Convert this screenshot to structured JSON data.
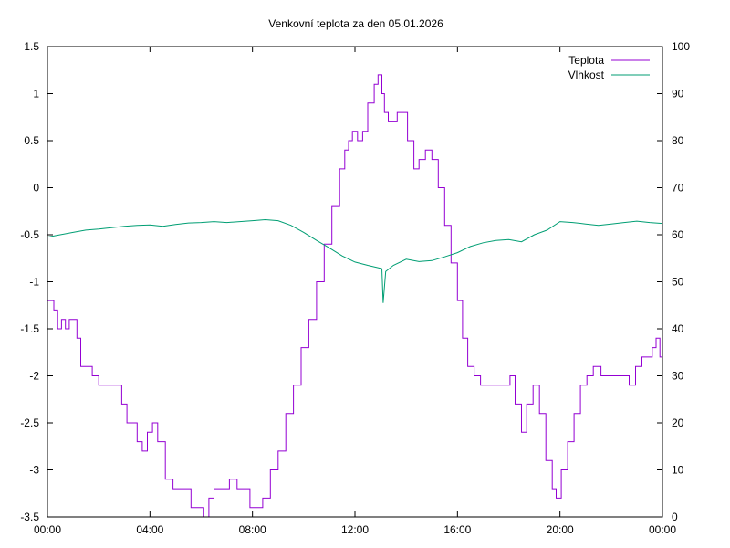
{
  "chart_data": {
    "type": "line",
    "title": "Venkovní teplota za den 05.01.2026",
    "xlabel": "",
    "ylabel": "",
    "y2label": "",
    "x_ticks": [
      "00:00",
      "04:00",
      "08:00",
      "12:00",
      "16:00",
      "20:00",
      "00:00"
    ],
    "x_range_hours": [
      0,
      24
    ],
    "ylim": [
      -3.5,
      1.5
    ],
    "y_ticks": [
      -3.5,
      -3,
      -2.5,
      -2,
      -1.5,
      -1,
      -0.5,
      0,
      0.5,
      1,
      1.5
    ],
    "y2lim": [
      0,
      100
    ],
    "y2_ticks": [
      0,
      10,
      20,
      30,
      40,
      50,
      60,
      70,
      80,
      90,
      100
    ],
    "grid": false,
    "legend_position": "top-right",
    "series": [
      {
        "name": "Teplota",
        "axis": "left",
        "color": "#9400d3",
        "x_hours": [
          0,
          0.25,
          0.4,
          0.55,
          0.7,
          0.85,
          1.0,
          1.15,
          1.3,
          1.5,
          1.75,
          2.0,
          2.1,
          2.3,
          2.6,
          2.9,
          3.1,
          3.3,
          3.5,
          3.7,
          3.9,
          4.1,
          4.3,
          4.6,
          4.9,
          5.1,
          5.4,
          5.6,
          5.8,
          6.1,
          6.3,
          6.5,
          6.8,
          7.1,
          7.4,
          7.7,
          7.9,
          8.1,
          8.4,
          8.7,
          9.0,
          9.3,
          9.6,
          9.9,
          10.2,
          10.5,
          10.8,
          11.1,
          11.4,
          11.6,
          11.75,
          11.9,
          12.1,
          12.3,
          12.5,
          12.75,
          12.9,
          13.05,
          13.15,
          13.3,
          13.45,
          13.65,
          13.85,
          14.05,
          14.3,
          14.5,
          14.75,
          15.0,
          15.25,
          15.5,
          15.75,
          16.0,
          16.2,
          16.4,
          16.65,
          16.9,
          17.2,
          17.5,
          17.8,
          18.05,
          18.25,
          18.5,
          18.7,
          18.95,
          19.2,
          19.45,
          19.7,
          19.85,
          20.05,
          20.3,
          20.55,
          20.8,
          21.05,
          21.3,
          21.6,
          21.9,
          22.2,
          22.45,
          22.7,
          22.95,
          23.2,
          23.4,
          23.6,
          23.75,
          23.9,
          24.0
        ],
        "values": [
          -1.2,
          -1.3,
          -1.5,
          -1.4,
          -1.5,
          -1.4,
          -1.4,
          -1.6,
          -1.9,
          -1.9,
          -2.0,
          -2.1,
          -2.1,
          -2.1,
          -2.1,
          -2.3,
          -2.5,
          -2.5,
          -2.7,
          -2.8,
          -2.6,
          -2.5,
          -2.7,
          -3.1,
          -3.2,
          -3.2,
          -3.2,
          -3.4,
          -3.4,
          -3.5,
          -3.3,
          -3.2,
          -3.2,
          -3.1,
          -3.2,
          -3.2,
          -3.4,
          -3.4,
          -3.3,
          -3.0,
          -2.8,
          -2.4,
          -2.1,
          -1.7,
          -1.4,
          -1.0,
          -0.6,
          -0.2,
          0.2,
          0.4,
          0.5,
          0.6,
          0.5,
          0.6,
          0.9,
          1.1,
          1.2,
          1.0,
          0.8,
          0.7,
          0.7,
          0.8,
          0.8,
          0.5,
          0.2,
          0.3,
          0.4,
          0.3,
          0.0,
          -0.4,
          -0.8,
          -1.2,
          -1.6,
          -1.9,
          -2.0,
          -2.1,
          -2.1,
          -2.1,
          -2.1,
          -2.0,
          -2.3,
          -2.6,
          -2.3,
          -2.1,
          -2.4,
          -2.9,
          -3.2,
          -3.3,
          -3.0,
          -2.7,
          -2.4,
          -2.1,
          -2.0,
          -1.9,
          -2.0,
          -2.0,
          -2.0,
          -2.0,
          -2.1,
          -1.9,
          -1.8,
          -1.8,
          -1.7,
          -1.6,
          -1.8,
          -1.8
        ]
      },
      {
        "name": "Vlhkost",
        "axis": "right",
        "color": "#009e73",
        "x_hours": [
          0,
          0.5,
          1.0,
          1.5,
          2.0,
          2.5,
          3.0,
          3.5,
          4.0,
          4.5,
          5.0,
          5.5,
          6.0,
          6.5,
          7.0,
          7.5,
          8.0,
          8.5,
          9.0,
          9.5,
          10.0,
          10.5,
          11.0,
          11.5,
          12.0,
          12.5,
          12.9,
          13.05,
          13.1,
          13.2,
          13.5,
          14.0,
          14.5,
          15.0,
          15.5,
          16.0,
          16.5,
          17.0,
          17.5,
          18.0,
          18.5,
          19.0,
          19.5,
          20.0,
          20.5,
          21.0,
          21.5,
          22.0,
          22.5,
          23.0,
          23.5,
          24.0
        ],
        "values": [
          59.5,
          60.0,
          60.5,
          61.0,
          61.2,
          61.5,
          61.8,
          62.0,
          62.1,
          61.8,
          62.2,
          62.5,
          62.6,
          62.8,
          62.6,
          62.8,
          63.0,
          63.2,
          63.0,
          62.0,
          60.5,
          58.8,
          57.2,
          55.5,
          54.2,
          53.5,
          53.0,
          52.8,
          45.5,
          52.2,
          53.5,
          54.8,
          54.3,
          54.5,
          55.3,
          56.2,
          57.5,
          58.3,
          58.8,
          59.0,
          58.5,
          60.0,
          61.0,
          62.8,
          62.6,
          62.3,
          62.0,
          62.3,
          62.6,
          62.9,
          62.6,
          62.4
        ]
      }
    ]
  }
}
